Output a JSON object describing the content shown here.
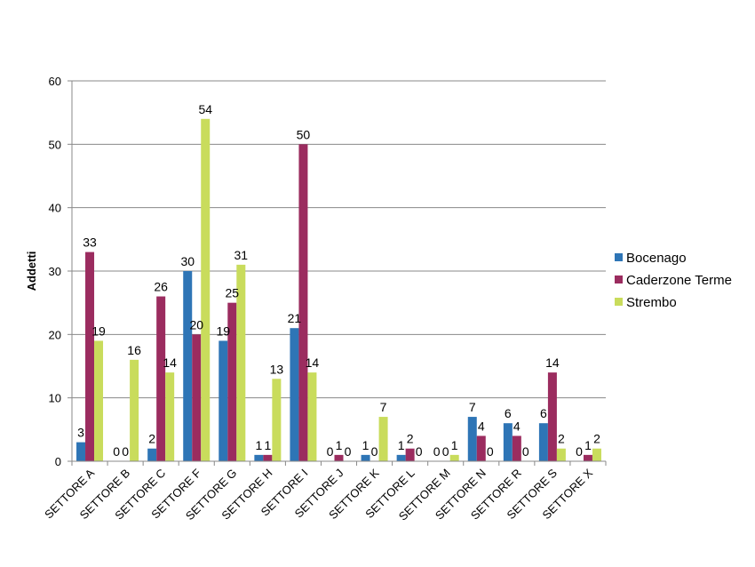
{
  "chart_data": {
    "type": "bar",
    "title": "",
    "xlabel": "",
    "ylabel": "Addetti",
    "ylim": [
      0,
      60
    ],
    "yticks": [
      0,
      10,
      20,
      30,
      40,
      50,
      60
    ],
    "grid": true,
    "legend_position": "right",
    "categories": [
      "SETTORE A",
      "SETTORE B",
      "SETTORE C",
      "SETTORE F",
      "SETTORE G",
      "SETTORE H",
      "SETTORE I",
      "SETTORE J",
      "SETTORE K",
      "SETTORE L",
      "SETTORE M",
      "SETTORE N",
      "SETTORE R",
      "SETTORE S",
      "SETTORE X"
    ],
    "series": [
      {
        "name": "Bocenago",
        "color": "#2e75b6",
        "values": [
          3,
          0,
          2,
          30,
          19,
          1,
          21,
          0,
          1,
          1,
          0,
          7,
          6,
          6,
          0
        ]
      },
      {
        "name": "Caderzone Terme",
        "color": "#9b2c5f",
        "values": [
          33,
          0,
          26,
          20,
          25,
          1,
          50,
          1,
          0,
          2,
          0,
          4,
          4,
          14,
          1
        ]
      },
      {
        "name": "Strembo",
        "color": "#c9dc5c",
        "values": [
          19,
          16,
          14,
          54,
          31,
          13,
          14,
          0,
          7,
          0,
          1,
          0,
          0,
          2,
          2
        ]
      }
    ]
  }
}
